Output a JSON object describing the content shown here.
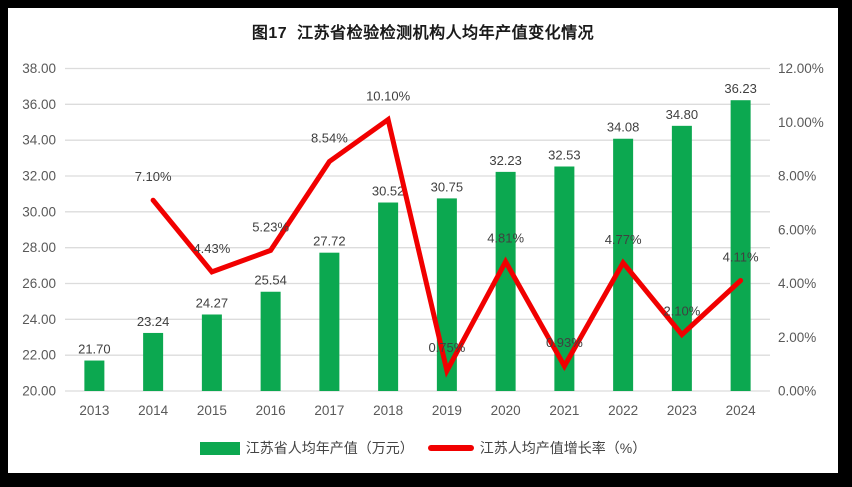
{
  "title": "图17  江苏省检验检测机构人均年产值变化情况",
  "colors": {
    "bar": "#0ca850",
    "line": "#f10000",
    "grid": "#dcdcdc",
    "axis_text": "#595959",
    "data_label": "#404040",
    "frame_bg": "#ffffff",
    "outer_border": "#000000"
  },
  "chart_data": {
    "type": "bar+line",
    "title": "图17  江苏省检验检测机构人均年产值变化情况",
    "categories": [
      "2013",
      "2014",
      "2015",
      "2016",
      "2017",
      "2018",
      "2019",
      "2020",
      "2021",
      "2022",
      "2023",
      "2024"
    ],
    "series": [
      {
        "name": "江苏省人均年产值（万元）",
        "type": "bar",
        "axis": "left",
        "color": "#0ca850",
        "values": [
          21.7,
          23.24,
          24.27,
          25.54,
          27.72,
          30.52,
          30.75,
          32.23,
          32.53,
          34.08,
          34.8,
          36.23
        ],
        "labels": [
          "21.70",
          "23.24",
          "24.27",
          "25.54",
          "27.72",
          "30.52",
          "30.75",
          "32.23",
          "32.53",
          "34.08",
          "34.80",
          "36.23"
        ]
      },
      {
        "name": "江苏人均产值增长率（%）",
        "type": "line",
        "axis": "right",
        "color": "#f10000",
        "values": [
          null,
          7.1,
          4.43,
          5.23,
          8.54,
          10.1,
          0.75,
          4.81,
          0.93,
          4.77,
          2.1,
          4.11
        ],
        "labels": [
          null,
          "7.10%",
          "4.43%",
          "5.23%",
          "8.54%",
          "10.10%",
          "0.75%",
          "4.81%",
          "0.93%",
          "4.77%",
          "2.10%",
          "4.11%"
        ]
      }
    ],
    "left_axis": {
      "min": 20,
      "max": 38,
      "step": 2,
      "tick_labels": [
        "20.00",
        "22.00",
        "24.00",
        "26.00",
        "28.00",
        "30.00",
        "32.00",
        "34.00",
        "36.00",
        "38.00"
      ]
    },
    "right_axis": {
      "min": 0,
      "max": 12,
      "step": 2,
      "tick_labels": [
        "0.00%",
        "2.00%",
        "4.00%",
        "6.00%",
        "8.00%",
        "10.00%",
        "12.00%"
      ]
    },
    "grid": true,
    "legend_position": "bottom"
  }
}
